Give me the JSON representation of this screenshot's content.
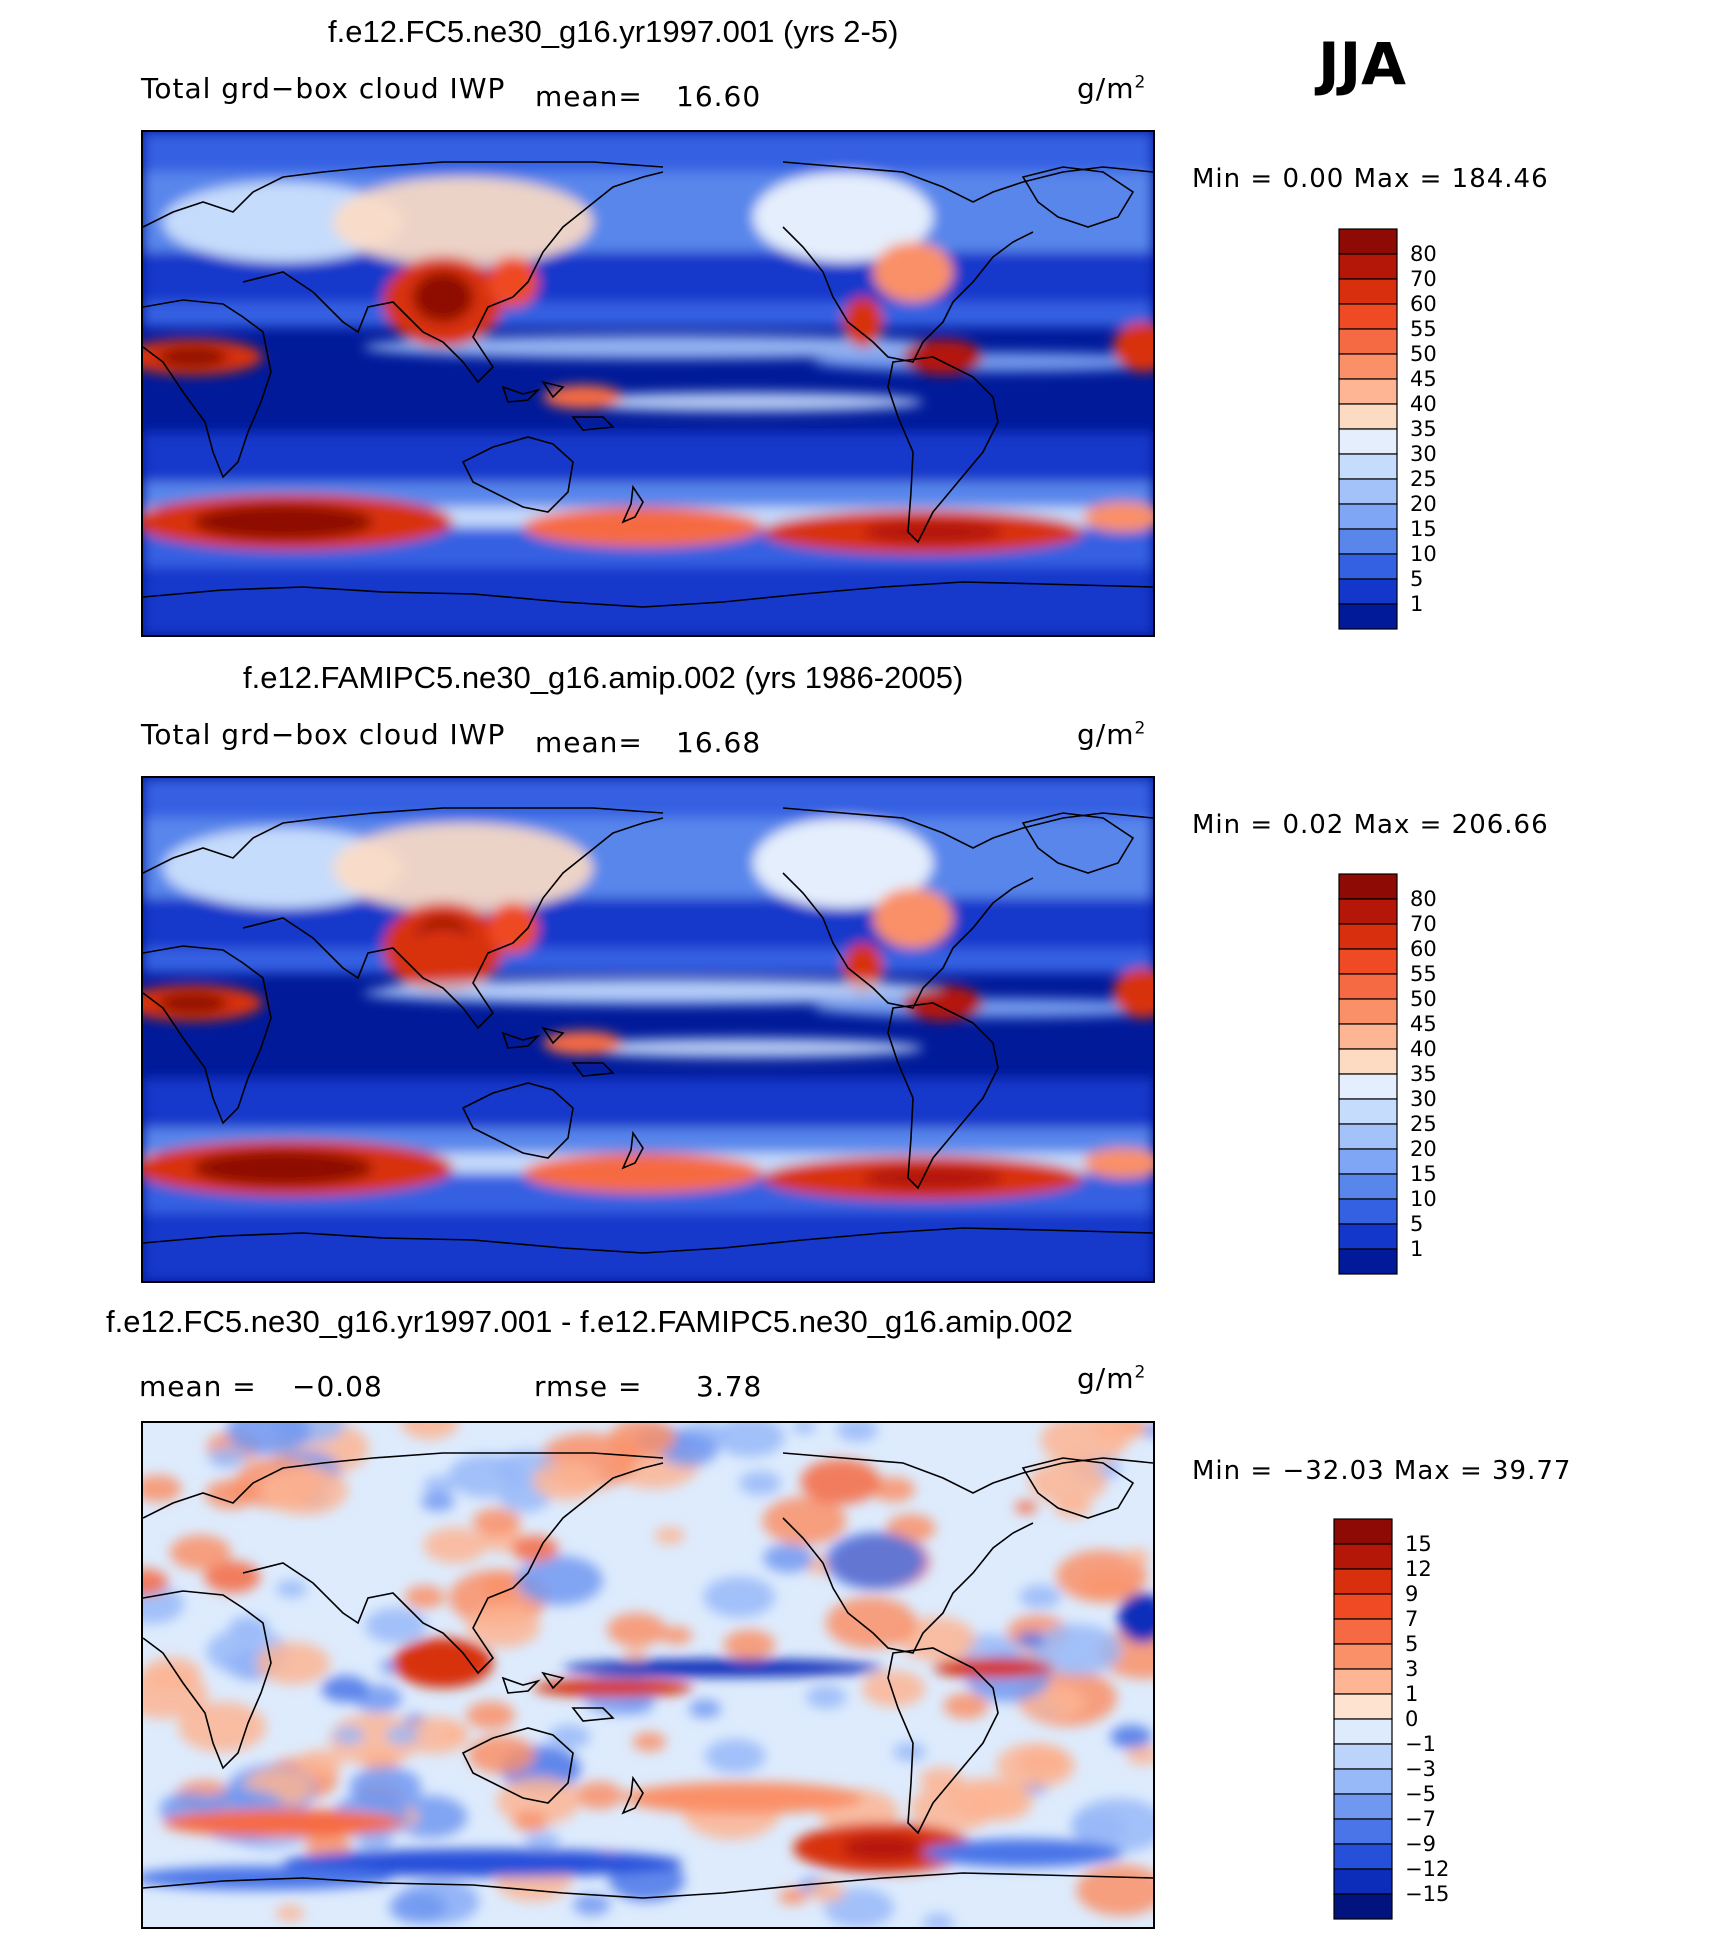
{
  "season": "JJA",
  "colors": {
    "pos": [
      "#FDDEC8",
      "#FDBEA5",
      "#FC9F7C",
      "#F57F56",
      "#F2572F",
      "#E43516",
      "#C01E08",
      "#8E0A04"
    ],
    "neg": [
      "#DDEEFF",
      "#BFD8FF",
      "#9FC3FF",
      "#7DAAF9",
      "#5C8CF2",
      "#3C6CEB",
      "#1E48DE",
      "#0A2CC2",
      "#02179C",
      "#000C7A"
    ]
  },
  "panels": [
    {
      "title": "f.e12.FC5.ne30_g16.yr1997.001 (yrs 2-5)",
      "variable": "Total grd−box cloud IWP",
      "mean_label": "mean=",
      "mean": "16.60",
      "units_base": "g/m",
      "units_exp": "2",
      "minmax": "Min =     0.00  Max  =  184.46",
      "colorbar": {
        "labels": [
          "80",
          "70",
          "60",
          "55",
          "50",
          "45",
          "40",
          "35",
          "30",
          "25",
          "20",
          "15",
          "10",
          "5",
          "1"
        ],
        "colors": [
          "#8E0A04",
          "#B41708",
          "#D8300F",
          "#EF4A24",
          "#F66A43",
          "#FA9068",
          "#FDB594",
          "#FDDBC3",
          "#E4EEFC",
          "#C6DCFC",
          "#A3C2FA",
          "#7FA6F4",
          "#5886EB",
          "#3460E2",
          "#1337CB",
          "#001A9A"
        ]
      },
      "chart_data": {
        "type": "heatmap",
        "title": "f.e12.FC5.ne30_g16.yr1997.001 (yrs 2-5)",
        "variable": "Total grd-box cloud IWP",
        "units": "g/m2",
        "mean": 16.6,
        "min": 0.0,
        "max": 184.46,
        "levels": [
          1,
          5,
          10,
          15,
          20,
          25,
          30,
          35,
          40,
          45,
          50,
          55,
          60,
          70,
          80
        ]
      }
    },
    {
      "title": "f.e12.FAMIPC5.ne30_g16.amip.002 (yrs 1986-2005)",
      "variable": "Total grd−box cloud IWP",
      "mean_label": "mean=",
      "mean": "16.68",
      "units_base": "g/m",
      "units_exp": "2",
      "minmax": "Min =     0.02  Max  =  206.66",
      "colorbar": {
        "labels": [
          "80",
          "70",
          "60",
          "55",
          "50",
          "45",
          "40",
          "35",
          "30",
          "25",
          "20",
          "15",
          "10",
          "5",
          "1"
        ],
        "colors": [
          "#8E0A04",
          "#B41708",
          "#D8300F",
          "#EF4A24",
          "#F66A43",
          "#FA9068",
          "#FDB594",
          "#FDDBC3",
          "#E4EEFC",
          "#C6DCFC",
          "#A3C2FA",
          "#7FA6F4",
          "#5886EB",
          "#3460E2",
          "#1337CB",
          "#001A9A"
        ]
      },
      "chart_data": {
        "type": "heatmap",
        "title": "f.e12.FAMIPC5.ne30_g16.amip.002 (yrs 1986-2005)",
        "variable": "Total grd-box cloud IWP",
        "units": "g/m2",
        "mean": 16.68,
        "min": 0.02,
        "max": 206.66,
        "levels": [
          1,
          5,
          10,
          15,
          20,
          25,
          30,
          35,
          40,
          45,
          50,
          55,
          60,
          70,
          80
        ]
      }
    },
    {
      "title": "f.e12.FC5.ne30_g16.yr1997.001 - f.e12.FAMIPC5.ne30_g16.amip.002",
      "mean_label": "mean  =",
      "mean": "−0.08",
      "rmse_label": "rmse  =",
      "rmse": "3.78",
      "units_base": "g/m",
      "units_exp": "2",
      "minmax": "Min  = −32.03  Max  =    39.77",
      "colorbar": {
        "labels": [
          "15",
          "12",
          "9",
          "7",
          "5",
          "3",
          "1",
          "0",
          "−1",
          "−3",
          "−5",
          "−7",
          "−9",
          "−12",
          "−15"
        ],
        "colors": [
          "#8E0A04",
          "#B41708",
          "#D8300F",
          "#EF4A24",
          "#F66A43",
          "#FA9068",
          "#FDB594",
          "#FDE3D0",
          "#DDEBFD",
          "#BCD4FC",
          "#98B9F8",
          "#7198F1",
          "#4A75E8",
          "#2650DA",
          "#0C2DBA",
          "#00137F"
        ]
      },
      "chart_data": {
        "type": "heatmap",
        "title": "f.e12.FC5.ne30_g16.yr1997.001 - f.e12.FAMIPC5.ne30_g16.amip.002",
        "units": "g/m2",
        "mean": -0.08,
        "rmse": 3.78,
        "min": -32.03,
        "max": 39.77,
        "levels": [
          -15,
          -12,
          -9,
          -7,
          -5,
          -3,
          -1,
          0,
          1,
          3,
          5,
          7,
          9,
          12,
          15
        ]
      }
    }
  ]
}
